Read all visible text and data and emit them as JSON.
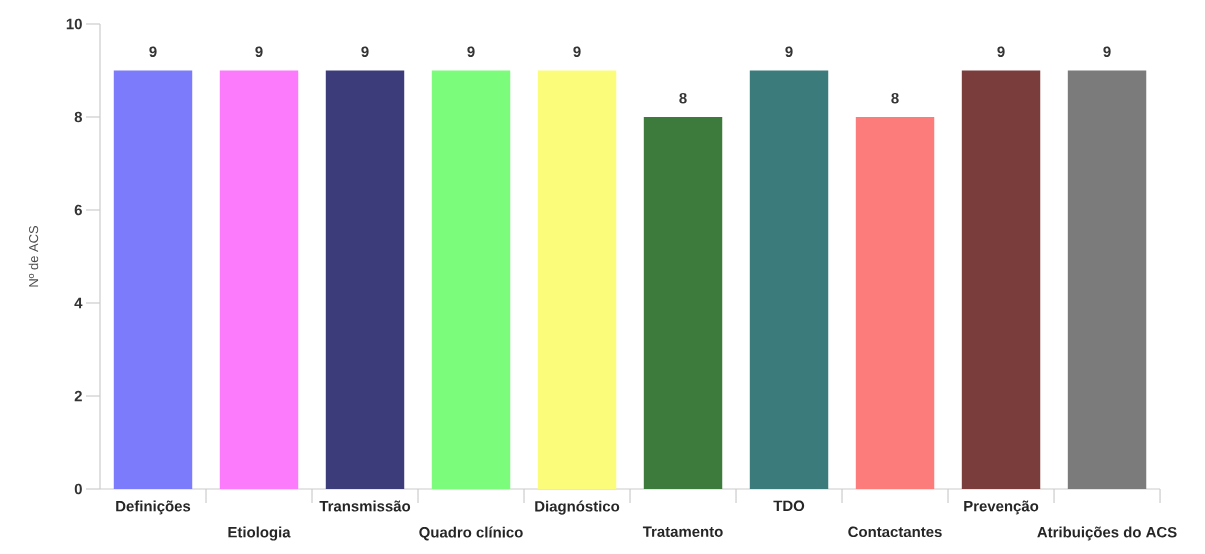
{
  "chart_data": {
    "type": "bar",
    "ylabel": "Nº de ACS",
    "categories": [
      "Definições",
      "Etiologia",
      "Transmissão",
      "Quadro clínico",
      "Diagnóstico",
      "Tratamento",
      "TDO",
      "Contactantes",
      "Prevenção",
      "Atribuições do ACS"
    ],
    "values": [
      9,
      9,
      9,
      9,
      9,
      8,
      9,
      8,
      9,
      9
    ],
    "colors": [
      "#7b7bfc",
      "#fc7bfc",
      "#3c3c7a",
      "#7bfc7b",
      "#fcfc7b",
      "#3c7b3c",
      "#3c7b7b",
      "#fc7b7b",
      "#7b3c3c",
      "#7b7b7b"
    ],
    "ylim": [
      0,
      10
    ],
    "yticks": [
      0,
      2,
      4,
      6,
      8,
      10
    ],
    "data_labels": true,
    "grid": false
  }
}
